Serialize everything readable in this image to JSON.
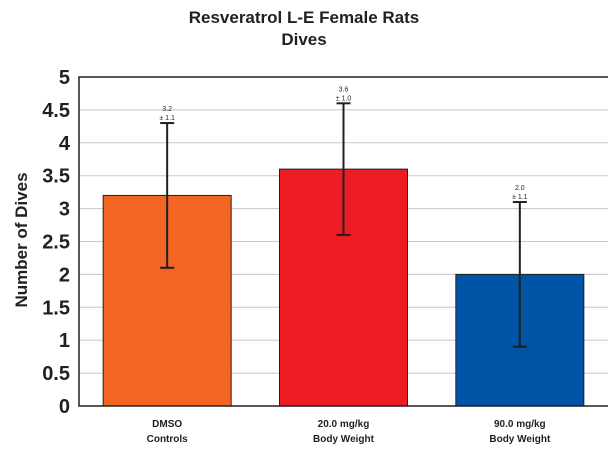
{
  "chart_data": {
    "type": "bar",
    "title": "Resveratrol L-E Female Rats",
    "subtitle": "Dives",
    "ylabel": "Number of Dives",
    "xlabel": "",
    "ylim": [
      0,
      5
    ],
    "yticks": [
      "0",
      "0.5",
      "1",
      "1.5",
      "2",
      "2.5",
      "3",
      "3.5",
      "4",
      "4.5",
      "5"
    ],
    "grid": true,
    "categories": [
      [
        "DMSO",
        "Controls"
      ],
      [
        "20.0 mg/kg",
        "Body Weight"
      ],
      [
        "90.0 mg/kg",
        "Body Weight"
      ]
    ],
    "values": [
      3.2,
      3.6,
      2.0
    ],
    "errors": [
      1.1,
      1.0,
      1.1
    ],
    "data_labels": [
      [
        "3.2",
        "± 1.1"
      ],
      [
        "3.6",
        "± 1.0"
      ],
      [
        "2.0",
        "± 1.1"
      ]
    ],
    "colors": [
      "#f26522",
      "#ed1c24",
      "#0054a6"
    ]
  }
}
